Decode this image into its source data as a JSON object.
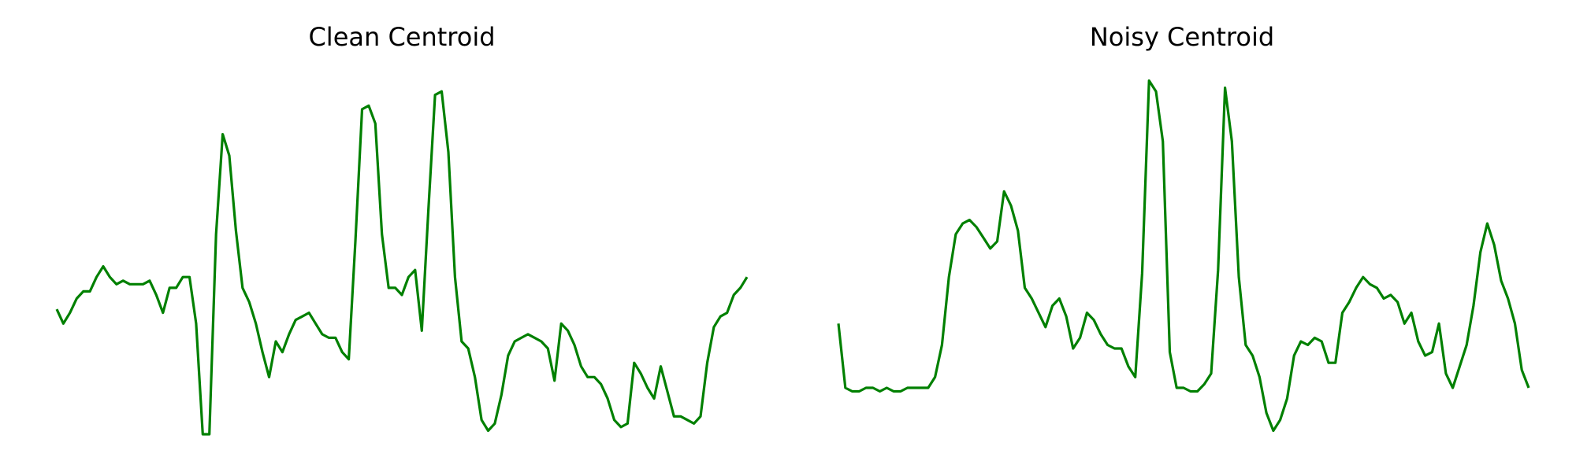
{
  "series_color": "#008000",
  "chart_data": [
    {
      "type": "line",
      "title": "Clean Centroid",
      "xlabel": "",
      "ylabel": "",
      "grid": false,
      "axes_visible": false,
      "ylim": [
        0,
        1
      ],
      "values": [
        0.35,
        0.31,
        0.34,
        0.38,
        0.4,
        0.4,
        0.44,
        0.47,
        0.44,
        0.42,
        0.43,
        0.42,
        0.42,
        0.42,
        0.43,
        0.39,
        0.34,
        0.41,
        0.41,
        0.44,
        0.44,
        0.31,
        0.0,
        0.0,
        0.56,
        0.84,
        0.78,
        0.57,
        0.41,
        0.37,
        0.31,
        0.23,
        0.16,
        0.26,
        0.23,
        0.28,
        0.32,
        0.33,
        0.34,
        0.31,
        0.28,
        0.27,
        0.27,
        0.23,
        0.21,
        0.54,
        0.91,
        0.92,
        0.87,
        0.56,
        0.41,
        0.41,
        0.39,
        0.44,
        0.46,
        0.29,
        0.63,
        0.95,
        0.96,
        0.79,
        0.44,
        0.26,
        0.24,
        0.16,
        0.04,
        0.01,
        0.03,
        0.11,
        0.22,
        0.26,
        0.27,
        0.28,
        0.27,
        0.26,
        0.24,
        0.15,
        0.31,
        0.29,
        0.25,
        0.19,
        0.16,
        0.16,
        0.14,
        0.1,
        0.04,
        0.02,
        0.03,
        0.2,
        0.17,
        0.13,
        0.1,
        0.19,
        0.12,
        0.05,
        0.05,
        0.04,
        0.03,
        0.05,
        0.2,
        0.3,
        0.33,
        0.34,
        0.39,
        0.41,
        0.44
      ]
    },
    {
      "type": "line",
      "title": "Noisy Centroid",
      "xlabel": "",
      "ylabel": "",
      "grid": false,
      "axes_visible": false,
      "ylim": [
        0,
        1
      ],
      "values": [
        0.31,
        0.13,
        0.12,
        0.12,
        0.13,
        0.13,
        0.12,
        0.13,
        0.12,
        0.12,
        0.13,
        0.13,
        0.13,
        0.13,
        0.16,
        0.25,
        0.44,
        0.56,
        0.59,
        0.6,
        0.58,
        0.55,
        0.52,
        0.54,
        0.68,
        0.64,
        0.57,
        0.41,
        0.38,
        0.34,
        0.3,
        0.36,
        0.38,
        0.33,
        0.24,
        0.27,
        0.34,
        0.32,
        0.28,
        0.25,
        0.24,
        0.24,
        0.19,
        0.16,
        0.45,
        0.99,
        0.96,
        0.82,
        0.23,
        0.13,
        0.13,
        0.12,
        0.12,
        0.14,
        0.17,
        0.46,
        0.97,
        0.82,
        0.44,
        0.25,
        0.22,
        0.16,
        0.06,
        0.01,
        0.04,
        0.1,
        0.22,
        0.26,
        0.25,
        0.27,
        0.26,
        0.2,
        0.2,
        0.34,
        0.37,
        0.41,
        0.44,
        0.42,
        0.41,
        0.38,
        0.39,
        0.37,
        0.31,
        0.34,
        0.26,
        0.22,
        0.23,
        0.31,
        0.17,
        0.13,
        0.19,
        0.25,
        0.36,
        0.51,
        0.59,
        0.53,
        0.43,
        0.38,
        0.31,
        0.18,
        0.13
      ]
    }
  ]
}
